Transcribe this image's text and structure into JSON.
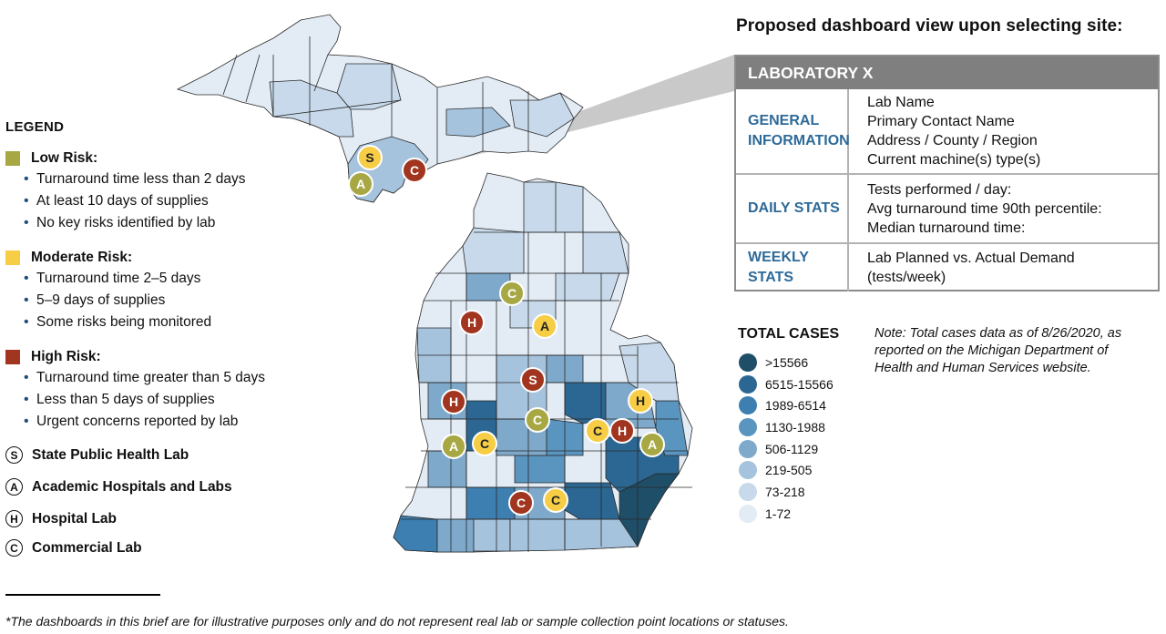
{
  "legend": {
    "title": "LEGEND",
    "risks": [
      {
        "label": "Low Risk:",
        "color": "#a7a844",
        "bullets": [
          "Turnaround time less than 2 days",
          "At least 10 days of supplies",
          "No key risks identified by lab"
        ]
      },
      {
        "label": "Moderate Risk:",
        "color": "#f6cd45",
        "bullets": [
          "Turnaround time 2–5 days",
          "5–9 days of supplies",
          "Some risks being monitored"
        ]
      },
      {
        "label": "High Risk:",
        "color": "#a1351f",
        "bullets": [
          "Turnaround time greater than 5 days",
          "Less than 5 days of supplies",
          "Urgent concerns reported by lab"
        ]
      }
    ],
    "types": [
      {
        "letter": "S",
        "label": "State Public Health Lab"
      },
      {
        "letter": "A",
        "label": "Academic Hospitals and Labs"
      },
      {
        "letter": "H",
        "label": "Hospital Lab"
      },
      {
        "letter": "C",
        "label": "Commercial Lab"
      }
    ]
  },
  "dashboard": {
    "title": "Proposed dashboard view upon selecting site:",
    "header": "LABORATORY X",
    "rows": [
      {
        "label": "GENERAL INFORMATION",
        "values": [
          "Lab Name",
          "Primary Contact Name",
          "Address / County / Region",
          "Current machine(s) type(s)"
        ]
      },
      {
        "label": "DAILY STATS",
        "values": [
          "Tests performed / day:",
          "Avg turnaround time 90th percentile:",
          "Median turnaround time:"
        ]
      },
      {
        "label": "WEEKLY STATS",
        "values": [
          "Lab Planned vs. Actual Demand",
          "(tests/week)"
        ]
      }
    ]
  },
  "total_cases": {
    "title": "TOTAL CASES",
    "bins": [
      {
        "label": ">15566",
        "color": "#1f4e68"
      },
      {
        "label": "6515-15566",
        "color": "#2b6792"
      },
      {
        "label": "1989-6514",
        "color": "#3d7fb0"
      },
      {
        "label": "1130-1988",
        "color": "#5a95c0"
      },
      {
        "label": "506-1129",
        "color": "#7fa9cb"
      },
      {
        "label": "219-505",
        "color": "#a6c3dd"
      },
      {
        "label": "73-218",
        "color": "#c7d9ea"
      },
      {
        "label": "1-72",
        "color": "#e3ecf5"
      }
    ]
  },
  "note": "Note: Total cases data as of 8/26/2020, as reported on the Michigan Department of Health and Human Services website.",
  "footnote": "*The dashboards in this brief are for illustrative purposes only and do not represent real lab or sample collection point locations or statuses.",
  "markers": [
    {
      "letter": "S",
      "risk": "moderate"
    },
    {
      "letter": "A",
      "risk": "low"
    },
    {
      "letter": "C",
      "risk": "high"
    },
    {
      "letter": "C",
      "risk": "low"
    },
    {
      "letter": "H",
      "risk": "high"
    },
    {
      "letter": "A",
      "risk": "moderate"
    },
    {
      "letter": "S",
      "risk": "high"
    },
    {
      "letter": "H",
      "risk": "high"
    },
    {
      "letter": "C",
      "risk": "low"
    },
    {
      "letter": "A",
      "risk": "low"
    },
    {
      "letter": "C",
      "risk": "moderate"
    },
    {
      "letter": "H",
      "risk": "moderate"
    },
    {
      "letter": "C",
      "risk": "moderate"
    },
    {
      "letter": "H",
      "risk": "high"
    },
    {
      "letter": "A",
      "risk": "low"
    },
    {
      "letter": "C",
      "risk": "high"
    },
    {
      "letter": "C",
      "risk": "moderate"
    }
  ]
}
